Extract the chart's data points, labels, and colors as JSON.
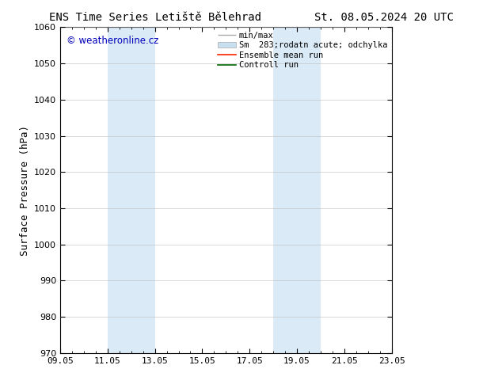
{
  "title_left": "ENS Time Series Letiště Bělehrad",
  "title_right": "St. 08.05.2024 20 UTC",
  "ylabel": "Surface Pressure (hPa)",
  "ylim": [
    970,
    1060
  ],
  "yticks": [
    970,
    980,
    990,
    1000,
    1010,
    1020,
    1030,
    1040,
    1050,
    1060
  ],
  "xlim": [
    0,
    14
  ],
  "xtick_labels": [
    "09.05",
    "11.05",
    "13.05",
    "15.05",
    "17.05",
    "19.05",
    "21.05",
    "23.05"
  ],
  "xtick_positions": [
    0,
    2,
    4,
    6,
    8,
    10,
    12,
    14
  ],
  "shaded_regions": [
    {
      "xstart": 2,
      "xend": 4,
      "color": "#daeaf7"
    },
    {
      "xstart": 9,
      "xend": 11,
      "color": "#daeaf7"
    }
  ],
  "watermark_text": "© weatheronline.cz",
  "watermark_color": "#0000bb",
  "legend_labels": [
    "min/max",
    "Sm  283;rodatn acute; odchylka",
    "Ensemble mean run",
    "Controll run"
  ],
  "legend_line_colors": [
    "#999999",
    "#c8dff0",
    "#ff2200",
    "#006600"
  ],
  "background_color": "#ffffff",
  "plot_bg_color": "#ffffff",
  "border_color": "#000000",
  "tick_color": "#000000",
  "title_fontsize": 10,
  "ylabel_fontsize": 9,
  "tick_fontsize": 8,
  "legend_fontsize": 7.5,
  "watermark_fontsize": 8.5
}
